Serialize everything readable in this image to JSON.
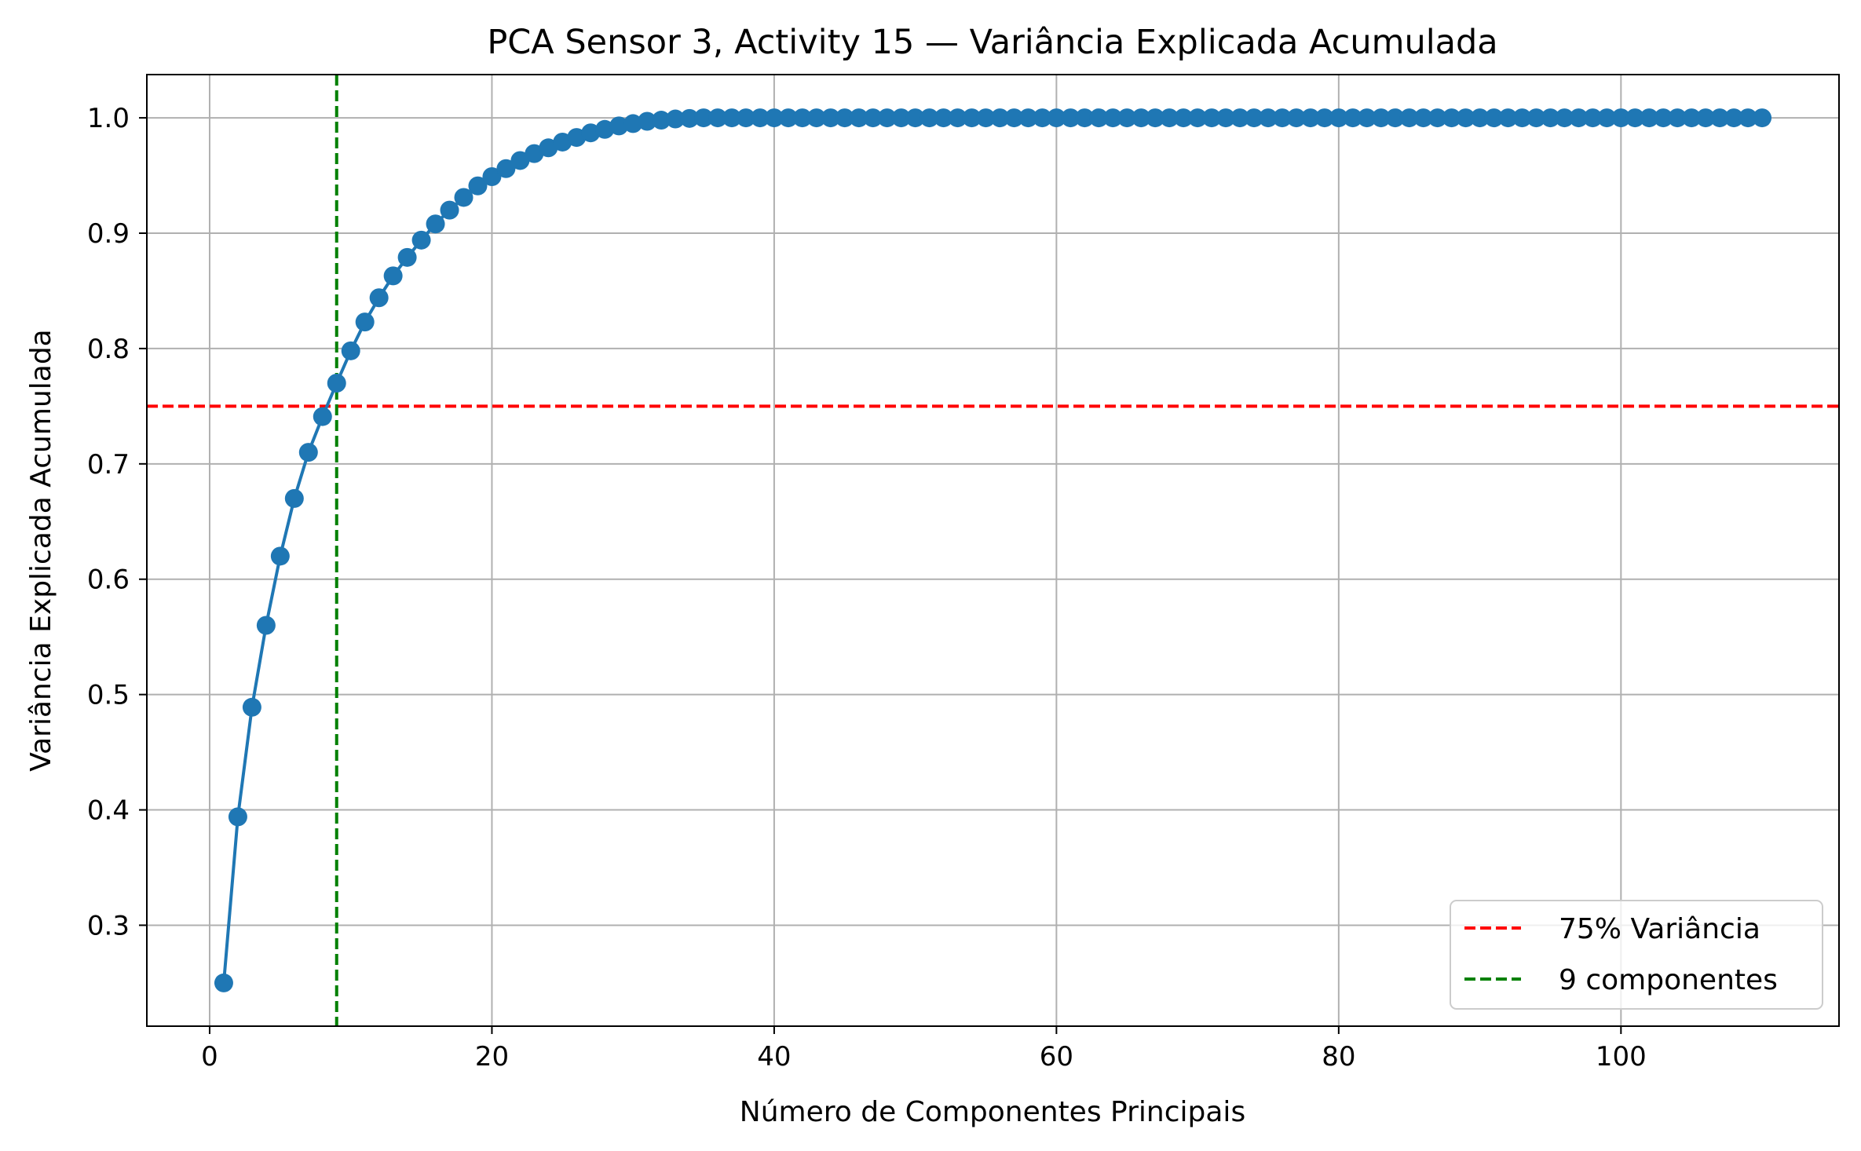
{
  "chart_data": {
    "type": "line",
    "title": "PCA Sensor 3, Activity 15 — Variância Explicada Acumulada",
    "xlabel": "Número de Componentes Principais",
    "ylabel": "Variância Explicada Acumulada",
    "xlim": [
      -4.45,
      115.45
    ],
    "ylim": [
      0.2125,
      1.0375
    ],
    "xticks": [
      0,
      20,
      40,
      60,
      80,
      100
    ],
    "xtick_labels": [
      "0",
      "20",
      "40",
      "60",
      "80",
      "100"
    ],
    "yticks": [
      0.3,
      0.4,
      0.5,
      0.6,
      0.7,
      0.8,
      0.9,
      1.0
    ],
    "ytick_labels": [
      "0.3",
      "0.4",
      "0.5",
      "0.6",
      "0.7",
      "0.8",
      "0.9",
      "1.0"
    ],
    "grid": true,
    "legend_position": "lower right",
    "series": [
      {
        "color": "#1f77b4",
        "marker": "circle",
        "x": [
          1,
          2,
          3,
          4,
          5,
          6,
          7,
          8,
          9,
          10,
          11,
          12,
          13,
          14,
          15,
          16,
          17,
          18,
          19,
          20,
          21,
          22,
          23,
          24,
          25,
          26,
          27,
          28,
          29,
          30,
          31,
          32,
          33,
          34,
          35,
          36,
          37,
          38,
          39,
          40,
          41,
          42,
          43,
          44,
          45,
          46,
          47,
          48,
          49,
          50,
          51,
          52,
          53,
          54,
          55,
          56,
          57,
          58,
          59,
          60,
          61,
          62,
          63,
          64,
          65,
          66,
          67,
          68,
          69,
          70,
          71,
          72,
          73,
          74,
          75,
          76,
          77,
          78,
          79,
          80,
          81,
          82,
          83,
          84,
          85,
          86,
          87,
          88,
          89,
          90,
          91,
          92,
          93,
          94,
          95,
          96,
          97,
          98,
          99,
          100,
          101,
          102,
          103,
          104,
          105,
          106,
          107,
          108,
          109,
          110
        ],
        "y": [
          0.25,
          0.394,
          0.489,
          0.56,
          0.62,
          0.67,
          0.71,
          0.741,
          0.77,
          0.798,
          0.823,
          0.844,
          0.863,
          0.879,
          0.894,
          0.908,
          0.92,
          0.931,
          0.941,
          0.949,
          0.956,
          0.963,
          0.969,
          0.974,
          0.979,
          0.983,
          0.987,
          0.99,
          0.993,
          0.995,
          0.997,
          0.998,
          0.999,
          0.9995,
          1.0,
          1.0,
          1.0,
          1.0,
          1.0,
          1.0,
          1.0,
          1.0,
          1.0,
          1.0,
          1.0,
          1.0,
          1.0,
          1.0,
          1.0,
          1.0,
          1.0,
          1.0,
          1.0,
          1.0,
          1.0,
          1.0,
          1.0,
          1.0,
          1.0,
          1.0,
          1.0,
          1.0,
          1.0,
          1.0,
          1.0,
          1.0,
          1.0,
          1.0,
          1.0,
          1.0,
          1.0,
          1.0,
          1.0,
          1.0,
          1.0,
          1.0,
          1.0,
          1.0,
          1.0,
          1.0,
          1.0,
          1.0,
          1.0,
          1.0,
          1.0,
          1.0,
          1.0,
          1.0,
          1.0,
          1.0,
          1.0,
          1.0,
          1.0,
          1.0,
          1.0,
          1.0,
          1.0,
          1.0,
          1.0,
          1.0,
          1.0,
          1.0,
          1.0,
          1.0,
          1.0,
          1.0,
          1.0,
          1.0,
          1.0,
          1.0
        ]
      }
    ],
    "reference_lines": [
      {
        "orientation": "horizontal",
        "value": 0.75,
        "color": "#ff0000",
        "style": "dashed",
        "label": "75% Variância"
      },
      {
        "orientation": "vertical",
        "value": 9,
        "color": "#008000",
        "style": "dashed",
        "label": "9 componentes"
      }
    ]
  }
}
